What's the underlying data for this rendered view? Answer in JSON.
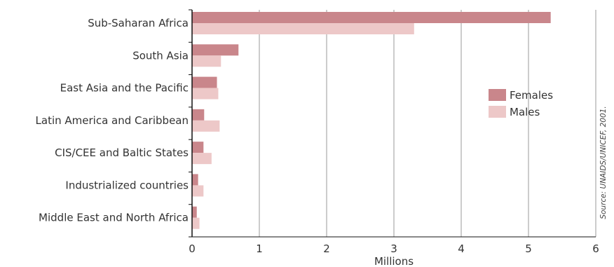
{
  "chart_data": {
    "type": "bar",
    "orientation": "horizontal",
    "categories": [
      "Sub-Saharan Africa",
      "South Asia",
      "East Asia and the Pacific",
      "Latin America and Caribbean",
      "CIS/CEE and Baltic States",
      "Industrialized countries",
      "Middle East and North Africa"
    ],
    "series": [
      {
        "name": "Females",
        "color": "#c9868b",
        "values": [
          5.33,
          0.69,
          0.37,
          0.18,
          0.17,
          0.09,
          0.07
        ]
      },
      {
        "name": "Males",
        "color": "#edc8c8",
        "values": [
          3.3,
          0.43,
          0.39,
          0.41,
          0.29,
          0.17,
          0.11
        ]
      }
    ],
    "xlabel": "Millions",
    "ylabel": "",
    "title": "",
    "xlim": [
      0,
      6
    ],
    "xticks": [
      "0",
      "1",
      "2",
      "3",
      "4",
      "5",
      "6"
    ],
    "grid": "vertical",
    "legend": "right",
    "source": "Source: UNAIDS/UNICEF, 2001."
  }
}
